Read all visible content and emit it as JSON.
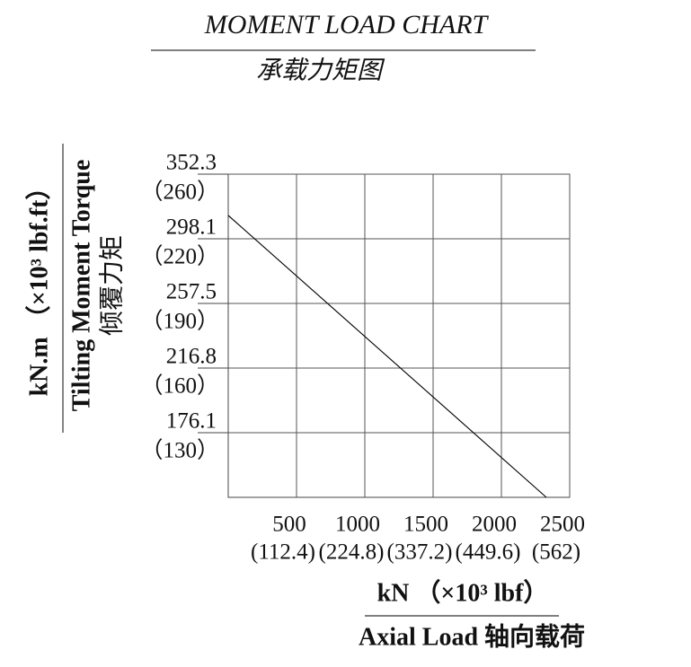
{
  "chart_data": {
    "type": "line",
    "title": "MOMENT LOAD CHART",
    "subtitle": "承载力矩图",
    "x_label": "kN （×10³ lbf）",
    "x_label_secondary": "Axial Load  轴向载荷",
    "y_label": "kN.m （×10³ lbf.ft）",
    "y_label_secondary": "Tilting Moment Torque",
    "y_label_tertiary": "倾覆力矩",
    "x": [
      0,
      2329
    ],
    "series": [
      {
        "color": "#000000",
        "values": [
          317.7,
          135.4
        ]
      }
    ],
    "xlim": [
      0,
      2500
    ],
    "xticks": [
      500,
      1000,
      1500,
      2000,
      2500
    ],
    "xtick_secondary_labels": [
      "(112.4)",
      "(224.8)",
      "(337.2)",
      "(449.6)",
      "(562)"
    ],
    "ylim": [
      135.4,
      352.3
    ],
    "yticks": [
      352.3,
      298.1,
      257.5,
      216.8,
      176.1
    ],
    "ytick_secondary_labels": [
      "（260）",
      "（220）",
      "（190）",
      "（160）",
      "（130）"
    ],
    "grid": true
  }
}
